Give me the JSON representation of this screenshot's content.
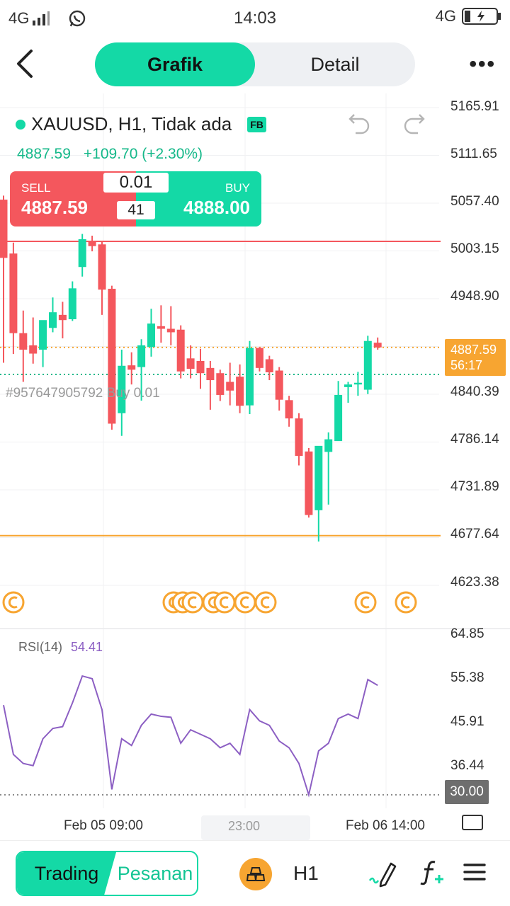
{
  "status_bar": {
    "network_left": "4G",
    "time": "14:03",
    "network_right": "4G"
  },
  "header": {
    "tabs": [
      {
        "label": "Grafik",
        "active": true
      },
      {
        "label": "Detail",
        "active": false
      }
    ]
  },
  "symbol": {
    "name": "XAUUSD, H1, Tidak ada",
    "badge": "FB",
    "price": "4887.59",
    "change": "+109.70 (+2.30%)"
  },
  "trade_panel": {
    "sell_label": "SELL",
    "sell_price": "4887.59",
    "buy_label": "BUY",
    "buy_price": "4888.00",
    "lot": "0.01",
    "spread": "41"
  },
  "price_axis": [
    "5165.91",
    "5111.65",
    "5057.40",
    "5003.15",
    "4948.90",
    "4840.39",
    "4786.14",
    "4731.89",
    "4677.64",
    "4623.38"
  ],
  "current_price_tag": {
    "price": "4887.59",
    "countdown": "56:17"
  },
  "order_line_label": "#957647905792 Buy 0.01",
  "rsi": {
    "label": "RSI(14)",
    "value": "54.41",
    "axis": [
      "64.85",
      "55.38",
      "45.91",
      "36.44"
    ],
    "level_tag": "30.00"
  },
  "time_axis": [
    "Feb 05 09:00",
    "23:00",
    "Feb 06 14:00"
  ],
  "bottom_bar": {
    "trading_label": "Trading",
    "orders_label": "Pesanan",
    "timeframe": "H1"
  },
  "colors": {
    "accent": "#14d9a6",
    "bull": "#14d9a6",
    "bear": "#f4575d",
    "price_line": "#f7a531",
    "rsi_line": "#8c5fc3",
    "order_line": "#15b889"
  },
  "chart_data": {
    "type": "candlestick",
    "symbol": "XAUUSD",
    "timeframe": "H1",
    "y_range": [
      4596.26,
      5179.47
    ],
    "horizontal_lines": [
      {
        "price": 5009.5,
        "color": "#f4575d"
      },
      {
        "price": 4887.59,
        "color": "#f7a531",
        "style": "dotted"
      },
      {
        "price": 4856.5,
        "color": "#15b889",
        "style": "dotted"
      },
      {
        "price": 4671.3,
        "color": "#f7a531"
      }
    ],
    "candles": [
      {
        "open": 5057.4,
        "high": 5062.0,
        "close": 4990.5,
        "low": 4870.0
      },
      {
        "open": 4995.5,
        "high": 5008.0,
        "close": 4904.0,
        "low": 4880.0
      },
      {
        "open": 4904.0,
        "high": 4930.0,
        "close": 4885.0,
        "low": 4848.0
      },
      {
        "open": 4890.0,
        "high": 4922.0,
        "close": 4880.5,
        "low": 4869.0
      },
      {
        "open": 4885.0,
        "high": 4918.0,
        "close": 4919.0,
        "low": 4865.0
      },
      {
        "open": 4910.0,
        "high": 4945.0,
        "close": 4928.0,
        "low": 4905.0
      },
      {
        "open": 4925.0,
        "high": 4940.0,
        "close": 4919.0,
        "low": 4898.0
      },
      {
        "open": 4920.0,
        "high": 4963.5,
        "close": 4955.5,
        "low": 4918.0
      },
      {
        "open": 4980.0,
        "high": 5018.0,
        "close": 5012.0,
        "low": 4969.0
      },
      {
        "open": 5009.0,
        "high": 5016.0,
        "close": 5004.0,
        "low": 4998.0
      },
      {
        "open": 5006.0,
        "high": 5009.0,
        "close": 4954.0,
        "low": 4925.0
      },
      {
        "open": 4955.0,
        "high": 4958.5,
        "close": 4800.0,
        "low": 4793.0
      },
      {
        "open": 4812.0,
        "high": 4885.0,
        "close": 4866.5,
        "low": 4786.0
      },
      {
        "open": 4867.0,
        "high": 4882.0,
        "close": 4862.0,
        "low": 4845.0
      },
      {
        "open": 4865.0,
        "high": 4897.0,
        "close": 4890.0,
        "low": 4826.5
      },
      {
        "open": 4888.0,
        "high": 4932.0,
        "close": 4915.0,
        "low": 4877.0
      },
      {
        "open": 4912.0,
        "high": 4936.0,
        "close": 4909.0,
        "low": 4893.0
      },
      {
        "open": 4909.0,
        "high": 4935.0,
        "close": 4905.0,
        "low": 4890.0
      },
      {
        "open": 4908.0,
        "high": 4913.0,
        "close": 4860.0,
        "low": 4852.0
      },
      {
        "open": 4875.0,
        "high": 4890.0,
        "close": 4863.0,
        "low": 4852.0
      },
      {
        "open": 4872.0,
        "high": 4886.0,
        "close": 4858.0,
        "low": 4840.0
      },
      {
        "open": 4864.0,
        "high": 4872.0,
        "close": 4850.0,
        "low": 4816.0
      },
      {
        "open": 4858.0,
        "high": 4862.0,
        "close": 4833.0,
        "low": 4826.0
      },
      {
        "open": 4848.0,
        "high": 4870.0,
        "close": 4838.0,
        "low": 4821.0
      },
      {
        "open": 4854.0,
        "high": 4868.0,
        "close": 4820.5,
        "low": 4812.0
      },
      {
        "open": 4821.0,
        "high": 4895.0,
        "close": 4887.0,
        "low": 4811.0
      },
      {
        "open": 4887.0,
        "high": 4888.0,
        "close": 4864.0,
        "low": 4860.0
      },
      {
        "open": 4874.0,
        "high": 4878.0,
        "close": 4859.0,
        "low": 4850.0
      },
      {
        "open": 4861.0,
        "high": 4865.0,
        "close": 4827.5,
        "low": 4815.0
      },
      {
        "open": 4827.0,
        "high": 4832.0,
        "close": 4806.0,
        "low": 4796.5
      },
      {
        "open": 4806.0,
        "high": 4812.0,
        "close": 4763.0,
        "low": 4752.0
      },
      {
        "open": 4768.0,
        "high": 4772.0,
        "close": 4695.0,
        "low": 4692.0
      },
      {
        "open": 4700.5,
        "high": 4774.0,
        "close": 4774.5,
        "low": 4664.5
      },
      {
        "open": 4767.5,
        "high": 4790.0,
        "close": 4782.0,
        "low": 4707.0
      },
      {
        "open": 4780.0,
        "high": 4849.0,
        "close": 4833.0,
        "low": 4781.0
      },
      {
        "open": 4842.0,
        "high": 4848.0,
        "close": 4845.0,
        "low": 4824.0
      },
      {
        "open": 4845.0,
        "high": 4859.5,
        "close": 4847.0,
        "low": 4832.0
      },
      {
        "open": 4839.0,
        "high": 4901.0,
        "close": 4895.0,
        "low": 4834.0
      },
      {
        "open": 4893.0,
        "high": 4899.0,
        "close": 4887.59,
        "low": 4885.0
      }
    ],
    "rsi_series": [
      50,
      39,
      37,
      36.5,
      42.5,
      44.8,
      45.2,
      50.5,
      56.5,
      55.9,
      49,
      31.2,
      42.5,
      41,
      45.5,
      48,
      47.5,
      47.3,
      41.5,
      44.5,
      43.5,
      42.5,
      40.5,
      41.5,
      39,
      49,
      46.5,
      45.5,
      42,
      40.5,
      37,
      30,
      39.8,
      41.5,
      47,
      48,
      47,
      55.7,
      54.41
    ],
    "rsi_range": [
      26.99,
      67.08
    ]
  }
}
